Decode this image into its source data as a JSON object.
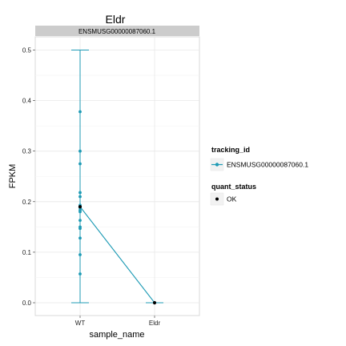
{
  "chart_data": {
    "type": "line",
    "title": "Eldr",
    "facet_label": "ENSMUSG00000087060.1",
    "xlabel": "sample_name",
    "ylabel": "FPKM",
    "categories": [
      "WT",
      "Eldr"
    ],
    "ylim": [
      0,
      0.5
    ],
    "y_ticks": [
      0.0,
      0.1,
      0.2,
      0.3,
      0.4,
      0.5
    ],
    "y_tick_labels": [
      "0.0",
      "0.1",
      "0.2",
      "0.3",
      "0.4",
      "0.5"
    ],
    "grid": true,
    "series": [
      {
        "name": "ENSMUSG00000087060.1",
        "color": "#1f9bb5",
        "values": [
          0.19,
          0.0
        ],
        "error_low": [
          0.0,
          0.0
        ],
        "error_high": [
          0.5,
          0.0
        ],
        "replicates": [
          {
            "x": "WT",
            "values": [
              0.378,
              0.3,
              0.275,
              0.218,
              0.21,
              0.193,
              0.188,
              0.183,
              0.18,
              0.163,
              0.15,
              0.147,
              0.128,
              0.095,
              0.057
            ]
          },
          {
            "x": "Eldr",
            "values": [
              0.0
            ]
          }
        ]
      }
    ],
    "quant_status_points": [
      {
        "x": "WT",
        "y": 0.19,
        "status": "OK"
      },
      {
        "x": "Eldr",
        "y": 0.0,
        "status": "OK"
      }
    ],
    "legend": {
      "placement": "right",
      "tracking_title": "tracking_id",
      "tracking_entry": "ENSMUSG00000087060.1",
      "quant_title": "quant_status",
      "quant_entry": "OK",
      "quant_color": "#000000"
    }
  }
}
